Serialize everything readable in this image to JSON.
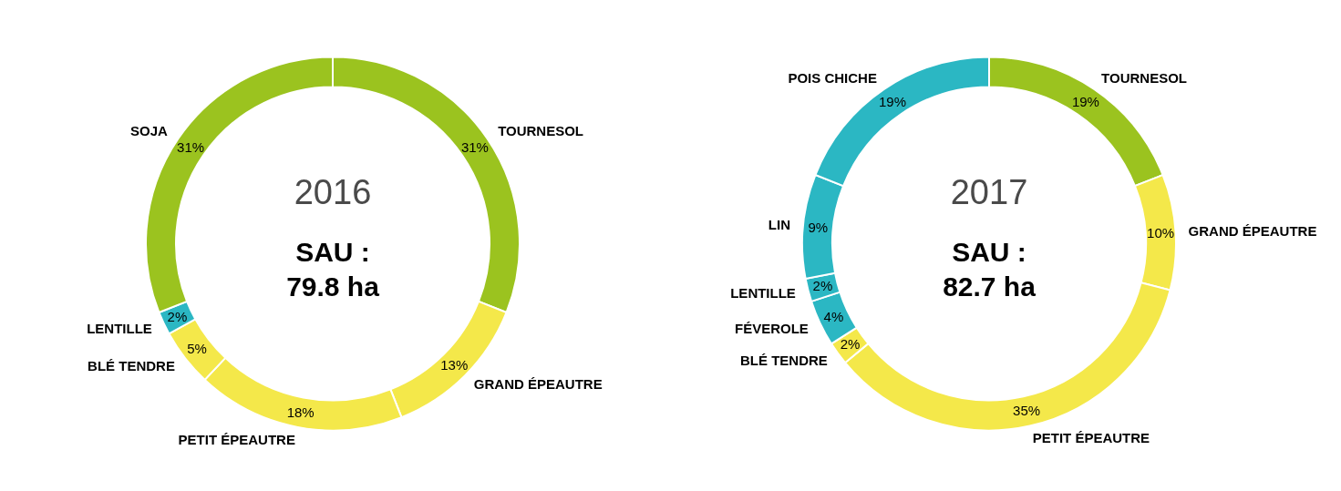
{
  "chart_data": [
    {
      "type": "donut",
      "categories": [
        "TOURNESOL",
        "GRAND ÉPEAUTRE",
        "PETIT ÉPEAUTRE",
        "BLÉ TENDRE",
        "LENTILLE",
        "SOJA"
      ],
      "values": [
        31,
        13,
        18,
        5,
        2,
        31
      ],
      "value_labels": [
        "31%",
        "13%",
        "18%",
        "5%",
        "2%",
        "31%"
      ],
      "colors": [
        "#9bc31f",
        "#f4e84a",
        "#f4e84a",
        "#f4e84a",
        "#2bb7c3",
        "#9bc31f"
      ],
      "annotations": [
        "2016",
        "SAU :",
        "79.8 ha"
      ]
    },
    {
      "type": "donut",
      "categories": [
        "TOURNESOL",
        "GRAND ÉPEAUTRE",
        "PETIT ÉPEAUTRE",
        "BLÉ TENDRE",
        "FÉVEROLE",
        "LENTILLE",
        "LIN",
        "POIS CHICHE"
      ],
      "values": [
        19,
        10,
        35,
        2,
        4,
        2,
        9,
        19
      ],
      "value_labels": [
        "19%",
        "10%",
        "35%",
        "2%",
        "4%",
        "2%",
        "9%",
        "19%"
      ],
      "colors": [
        "#9bc31f",
        "#f4e84a",
        "#f4e84a",
        "#f4e84a",
        "#2bb7c3",
        "#2bb7c3",
        "#2bb7c3",
        "#2bb7c3"
      ],
      "annotations": [
        "2017",
        "SAU :",
        "82.7 ha"
      ]
    }
  ]
}
